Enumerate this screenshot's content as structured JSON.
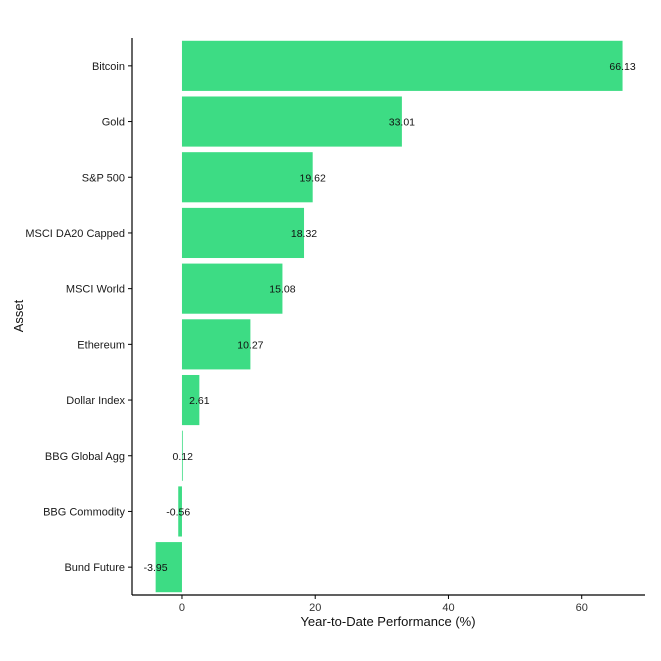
{
  "chart_data": {
    "type": "bar",
    "orientation": "horizontal",
    "xlabel": "Year-to-Date Performance (%)",
    "ylabel": "Asset",
    "xlim": [
      -7.5,
      69.5
    ],
    "xticks": [
      0,
      20,
      40,
      60
    ],
    "grid": false,
    "bar_color": "#3ddc84",
    "categories": [
      "Bitcoin",
      "Gold",
      "S&P 500",
      "MSCI DA20 Capped",
      "MSCI World",
      "Ethereum",
      "Dollar Index",
      "BBG Global Agg",
      "BBG Commodity",
      "Bund Future"
    ],
    "values": [
      66.13,
      33.01,
      19.62,
      18.32,
      15.08,
      10.27,
      2.61,
      0.12,
      -0.56,
      -3.95
    ],
    "value_labels": [
      "66.13",
      "33.01",
      "19.62",
      "18.32",
      "15.08",
      "10.27",
      "2.61",
      "0.12",
      "-0.56",
      "-3.95"
    ]
  }
}
